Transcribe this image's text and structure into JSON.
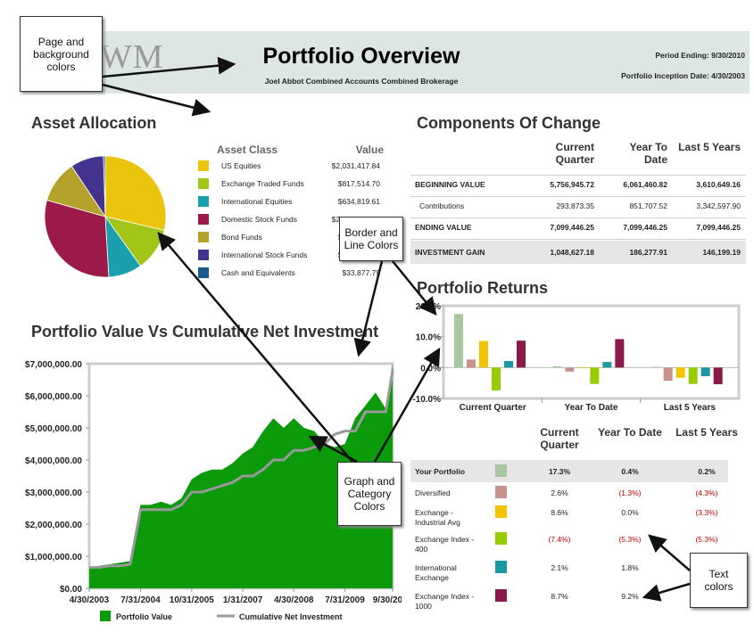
{
  "header": {
    "logo": "WM",
    "title": "Portfolio Overview",
    "subtitle": "Joel Abbot Combined Accounts Combined Brokerage",
    "period": "Period Ending: 9/30/2010",
    "inception": "Portfolio Inception Date: 4/30/2003"
  },
  "callouts": [
    "Page and background colors",
    "Border and Line Colors",
    "Graph and Category Colors",
    "Text colors"
  ],
  "components": {
    "title": "Components Of Change",
    "columns": [
      "Current Quarter",
      "Year To Date",
      "Last 5 Years"
    ],
    "rows": [
      {
        "label": "BEGINNING VALUE",
        "cells": [
          "5,756,945.72",
          "6,061,460.82",
          "3,610,649.16"
        ]
      },
      {
        "label": "Contributions",
        "cells": [
          "293,873.35",
          "851,707.52",
          "3,342,597.90"
        ]
      },
      {
        "label": "ENDING VALUE",
        "cells": [
          "7,099,446.25",
          "7,099,446.25",
          "7,099,446.25"
        ]
      },
      {
        "label": "INVESTMENT GAIN",
        "cells": [
          "1,048,627.18",
          "186,277.91",
          "146,199.19"
        ]
      }
    ]
  },
  "chart_data": [
    {
      "type": "pie",
      "title": "Asset Allocation",
      "columns": [
        "Asset Class",
        "Value"
      ],
      "categories": [
        "US Equities",
        "Exchange Traded Funds",
        "International Equities",
        "Domestic Stock Funds",
        "Bond Funds",
        "International Stock Funds",
        "Cash and Equivalents"
      ],
      "values": [
        2031417.84,
        817514.7,
        634819.61,
        2150000,
        800000,
        630000,
        33877.79
      ],
      "value_labels": [
        "$2,031,417.84",
        "$817,514.70",
        "$634,819.61",
        "$2,150,000.00",
        "$800,000.00",
        "$630,000.00",
        "$33,877.79"
      ],
      "colors": [
        "#eac40d",
        "#a2c617",
        "#1aa0ad",
        "#9c1a4a",
        "#b5a22c",
        "#43338f",
        "#1d5a8a"
      ]
    },
    {
      "type": "bar",
      "title": "Portfolio Returns",
      "categories": [
        "Current Quarter",
        "Year To Date",
        "Last 5 Years"
      ],
      "table_columns": [
        "Current Quarter",
        "Year To Date",
        "Last 5 Years"
      ],
      "ylim": [
        -10,
        20
      ],
      "yticks": [
        {
          "value": 20,
          "label": "20.0%"
        },
        {
          "value": 10,
          "label": "10.0%"
        },
        {
          "value": 0,
          "label": "0.0%"
        },
        {
          "value": -10,
          "label": "-10.0%"
        }
      ],
      "series": [
        {
          "name": "Your Portfolio",
          "color": "#a9c79f",
          "values": [
            17.3,
            0.4,
            0.2
          ],
          "value_labels": [
            "17.3%",
            "0.4%",
            "0.2%"
          ]
        },
        {
          "name": "Diversified",
          "color": "#c9928c",
          "values": [
            2.6,
            -1.3,
            -4.3
          ],
          "value_labels": [
            "2.6%",
            "(1.3%)",
            "(4.3%)"
          ]
        },
        {
          "name": "Exchange - Industrial Avg",
          "color": "#f2c500",
          "values": [
            8.6,
            0.0,
            -3.3
          ],
          "value_labels": [
            "8.6%",
            "0.0%",
            "(3.3%)"
          ]
        },
        {
          "name": "Exchange Index - 400",
          "color": "#99cc00",
          "values": [
            -7.4,
            -5.3,
            -5.3
          ],
          "value_labels": [
            "(7.4%)",
            "(5.3%)",
            "(5.3%)"
          ]
        },
        {
          "name": "International Exchange",
          "color": "#1a9aa0",
          "values": [
            2.1,
            1.8,
            -2.8
          ],
          "value_labels": [
            "2.1%",
            "1.8%",
            "(2.8%)"
          ]
        },
        {
          "name": "Exchange Index - 1000",
          "color": "#8b1a4a",
          "values": [
            8.7,
            9.2,
            -5.4
          ],
          "value_labels": [
            "8.7%",
            "9.2%",
            "(5.4%)"
          ]
        }
      ]
    },
    {
      "type": "area",
      "title": "Portfolio Value Vs Cumulative Net Investment",
      "x": [
        "4/30/2003",
        "7/31/2003",
        "10/31/2003",
        "1/31/2004",
        "4/30/2004",
        "7/31/2004",
        "10/31/2004",
        "1/31/2005",
        "4/30/2005",
        "7/31/2005",
        "10/31/2005",
        "1/31/2006",
        "4/30/2006",
        "7/31/2006",
        "10/31/2006",
        "1/31/2007",
        "4/30/2007",
        "7/31/2007",
        "10/31/2007",
        "1/31/2008",
        "4/30/2008",
        "7/31/2008",
        "10/31/2008",
        "1/31/2009",
        "4/30/2009",
        "7/31/2009",
        "10/31/2009",
        "1/31/2010",
        "4/30/2010",
        "7/31/2010",
        "9/30/2010"
      ],
      "series": [
        {
          "name": "Portfolio Value",
          "color": "#0a9a0a",
          "values": [
            650000,
            700000,
            750000,
            800000,
            850000,
            2600000,
            2600000,
            2700000,
            2600000,
            2800000,
            3400000,
            3600000,
            3700000,
            3700000,
            3900000,
            4200000,
            4400000,
            4900000,
            5300000,
            5000000,
            5300000,
            5000000,
            4900000,
            4500000,
            4400000,
            4500000,
            5300000,
            5700000,
            6100000,
            5600000,
            7000000
          ]
        },
        {
          "name": "Cumulative Net Investment",
          "color": "#999999",
          "values": [
            650000,
            650000,
            700000,
            700000,
            750000,
            2450000,
            2450000,
            2450000,
            2450000,
            2600000,
            3000000,
            3000000,
            3100000,
            3200000,
            3300000,
            3500000,
            3500000,
            3700000,
            4000000,
            4000000,
            4300000,
            4300000,
            4400000,
            4500000,
            4800000,
            4900000,
            4900000,
            5500000,
            5500000,
            5500000,
            6800000
          ]
        }
      ],
      "ylim": [
        0,
        7000000
      ],
      "yticks": [
        {
          "value": 0,
          "label": "$0.00"
        },
        {
          "value": 1000000,
          "label": "$1,000,000.00"
        },
        {
          "value": 2000000,
          "label": "$2,000,000.00"
        },
        {
          "value": 3000000,
          "label": "$3,000,000.00"
        },
        {
          "value": 4000000,
          "label": "$4,000,000.00"
        },
        {
          "value": 5000000,
          "label": "$5,000,000.00"
        },
        {
          "value": 6000000,
          "label": "$6,000,000.00"
        },
        {
          "value": 7000000,
          "label": "$7,000,000.00"
        }
      ],
      "xticks": [
        "4/30/2003",
        "7/31/2004",
        "10/31/2005",
        "1/31/2007",
        "4/30/2008",
        "7/31/2009",
        "9/30/2010"
      ]
    }
  ]
}
